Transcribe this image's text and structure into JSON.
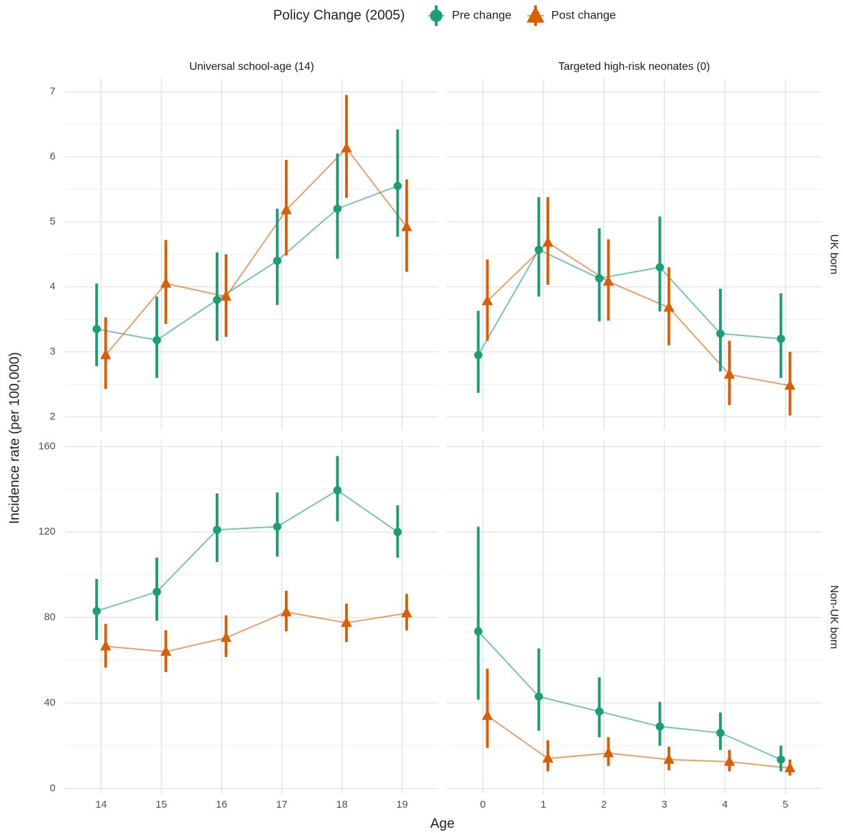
{
  "legend_title": "Policy Change (2005)",
  "x_label": "Age",
  "y_label": "Incidence rate (per 100,000)",
  "column_labels": [
    "Universal school-age (14)",
    "Targeted high-risk neonates (0)"
  ],
  "row_labels": [
    "UK born",
    "Non-UK born"
  ],
  "chart_data": [
    {
      "type": "line",
      "x": [
        14,
        15,
        16,
        17,
        18,
        19
      ],
      "xlim": [
        13.4,
        19.6
      ],
      "xticks": [
        14,
        15,
        16,
        17,
        18,
        19
      ],
      "ylim": [
        1.8,
        7.2
      ],
      "yticks": [
        2,
        3,
        4,
        5,
        6,
        7
      ],
      "minor_yticks": [
        2.5,
        3.5,
        4.5,
        5.5,
        6.5
      ],
      "grid": true,
      "series": [
        {
          "name": "Pre change",
          "color": "#1b9e77",
          "values": [
            3.35,
            3.18,
            3.8,
            4.4,
            5.2,
            5.55
          ],
          "lower": [
            2.78,
            2.6,
            3.17,
            3.72,
            4.43,
            4.77
          ],
          "upper": [
            4.05,
            3.85,
            4.53,
            5.2,
            6.05,
            6.42
          ]
        },
        {
          "name": "Post change",
          "color": "#d95f02",
          "values": [
            2.95,
            4.05,
            3.85,
            5.18,
            6.13,
            4.92
          ],
          "lower": [
            2.43,
            3.43,
            3.23,
            4.48,
            5.37,
            4.23
          ],
          "upper": [
            3.53,
            4.72,
            4.5,
            5.95,
            6.95,
            5.65
          ]
        }
      ]
    },
    {
      "type": "line",
      "x": [
        0,
        1,
        2,
        3,
        4,
        5
      ],
      "xlim": [
        -0.6,
        5.6
      ],
      "xticks": [
        0,
        1,
        2,
        3,
        4,
        5
      ],
      "ylim": [
        1.8,
        7.2
      ],
      "yticks": [
        2,
        3,
        4,
        5,
        6,
        7
      ],
      "minor_yticks": [
        2.5,
        3.5,
        4.5,
        5.5,
        6.5
      ],
      "grid": true,
      "series": [
        {
          "name": "Pre change",
          "color": "#1b9e77",
          "values": [
            2.95,
            4.57,
            4.13,
            4.3,
            3.28,
            3.2
          ],
          "lower": [
            2.37,
            3.85,
            3.47,
            3.62,
            2.7,
            2.6
          ],
          "upper": [
            3.63,
            5.38,
            4.9,
            5.08,
            3.97,
            3.9
          ]
        },
        {
          "name": "Post change",
          "color": "#d95f02",
          "values": [
            3.78,
            4.68,
            4.08,
            3.68,
            2.65,
            2.48
          ],
          "lower": [
            3.17,
            4.03,
            3.48,
            3.1,
            2.18,
            2.02
          ],
          "upper": [
            4.42,
            5.38,
            4.73,
            4.3,
            3.17,
            3.0
          ]
        }
      ]
    },
    {
      "type": "line",
      "x": [
        14,
        15,
        16,
        17,
        18,
        19
      ],
      "xlim": [
        13.4,
        19.6
      ],
      "xticks": [
        14,
        15,
        16,
        17,
        18,
        19
      ],
      "ylim": [
        -2.6,
        163
      ],
      "yticks": [
        0,
        40,
        80,
        120,
        160
      ],
      "minor_yticks": [
        20,
        60,
        100,
        140
      ],
      "grid": true,
      "series": [
        {
          "name": "Pre change",
          "color": "#1b9e77",
          "values": [
            83,
            92,
            121,
            122.5,
            139.5,
            120
          ],
          "lower": [
            69.5,
            78.5,
            106,
            108.5,
            125,
            108
          ],
          "upper": [
            98,
            108,
            138,
            138.5,
            155.5,
            132.5
          ]
        },
        {
          "name": "Post change",
          "color": "#d95f02",
          "values": [
            66.5,
            64,
            70.5,
            82.5,
            77.5,
            82
          ],
          "lower": [
            56.5,
            54.5,
            61.5,
            73.5,
            68.5,
            74
          ],
          "upper": [
            77,
            74,
            81,
            92.5,
            86.5,
            91
          ]
        }
      ]
    },
    {
      "type": "line",
      "x": [
        0,
        1,
        2,
        3,
        4,
        5
      ],
      "xlim": [
        -0.6,
        5.6
      ],
      "xticks": [
        0,
        1,
        2,
        3,
        4,
        5
      ],
      "ylim": [
        -2.6,
        163
      ],
      "yticks": [
        0,
        40,
        80,
        120,
        160
      ],
      "minor_yticks": [
        20,
        60,
        100,
        140
      ],
      "grid": true,
      "series": [
        {
          "name": "Pre change",
          "color": "#1b9e77",
          "values": [
            73.5,
            43,
            36,
            29,
            26,
            13.5
          ],
          "lower": [
            41.5,
            27,
            24,
            20,
            18,
            8
          ],
          "upper": [
            122.5,
            65.5,
            52,
            40.5,
            35.5,
            20
          ]
        },
        {
          "name": "Post change",
          "color": "#d95f02",
          "values": [
            34,
            14,
            16.5,
            13.5,
            12.5,
            9.5
          ],
          "lower": [
            19,
            8,
            10.5,
            8.5,
            8,
            6
          ],
          "upper": [
            56,
            22.5,
            24,
            19.5,
            18,
            13.5
          ]
        }
      ]
    }
  ]
}
